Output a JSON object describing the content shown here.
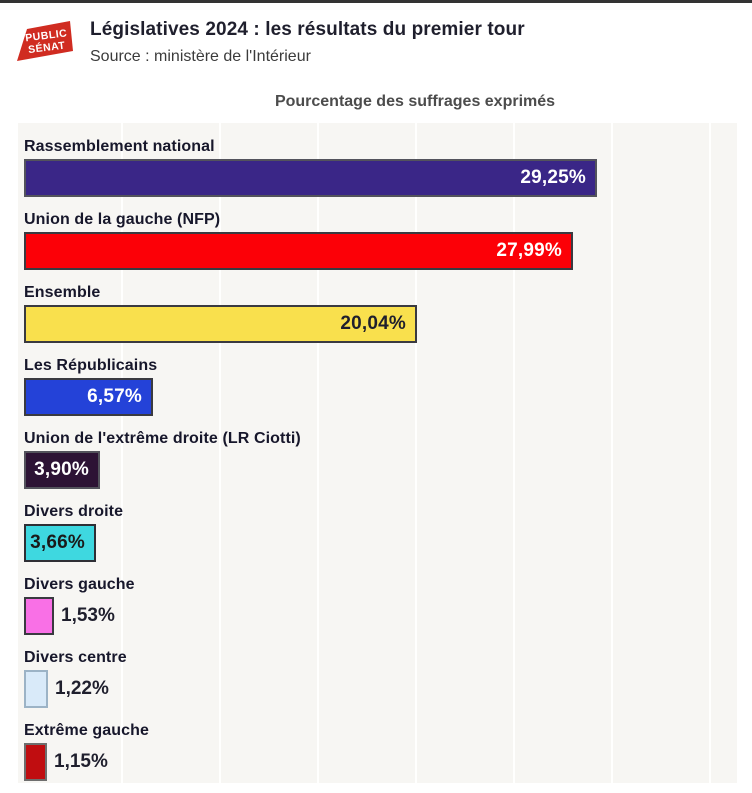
{
  "header": {
    "logo": {
      "line1": "PUBLIC",
      "line2": "SÉNAT",
      "color": "#d02c21",
      "text_color": "#ffffff"
    },
    "title": "Législatives 2024 : les résultats du premier tour",
    "source": "Source : ministère de l'Intérieur"
  },
  "chart_data": {
    "type": "bar",
    "orientation": "horizontal",
    "title": "Pourcentage des suffrages exprimés",
    "xlabel": "",
    "ylabel": "",
    "xlim": [
      0,
      36.5
    ],
    "grid_interval_percent": 5,
    "grid": "vertical-lines",
    "background_color": "#f7f6f3",
    "categories": [
      "Rassemblement national",
      "Union de la gauche (NFP)",
      "Ensemble",
      "Les Républicains",
      "Union de l'extrême droite (LR Ciotti)",
      "Divers droite",
      "Divers gauche",
      "Divers centre",
      "Extrême gauche"
    ],
    "values": [
      29.25,
      27.99,
      20.04,
      6.57,
      3.9,
      3.66,
      1.53,
      1.22,
      1.15
    ],
    "bars": [
      {
        "label": "Rassemblement national",
        "value": 29.25,
        "value_label": "29,25%",
        "color": "#3a2687",
        "border_color": "#53535c",
        "text_color": "#ffffff",
        "value_inside": true
      },
      {
        "label": "Union de la gauche (NFP)",
        "value": 27.99,
        "value_label": "27,99%",
        "color": "#fc0007",
        "border_color": "#3a3a40",
        "text_color": "#ffffff",
        "value_inside": true
      },
      {
        "label": "Ensemble",
        "value": 20.04,
        "value_label": "20,04%",
        "color": "#f9e04d",
        "border_color": "#3a3a40",
        "text_color": "#1f1f2d",
        "value_inside": true
      },
      {
        "label": "Les Républicains",
        "value": 6.57,
        "value_label": "6,57%",
        "color": "#2442d8",
        "border_color": "#3a3a40",
        "text_color": "#ffffff",
        "value_inside": true
      },
      {
        "label": "Union de l'extrême droite (LR Ciotti)",
        "value": 3.9,
        "value_label": "3,90%",
        "color": "#2d1335",
        "border_color": "#53535c",
        "text_color": "#ffffff",
        "value_inside": true
      },
      {
        "label": "Divers droite",
        "value": 3.66,
        "value_label": "3,66%",
        "color": "#3ed8e0",
        "border_color": "#2f2f35",
        "text_color": "#1a1a1a",
        "value_inside": true
      },
      {
        "label": "Divers gauche",
        "value": 1.53,
        "value_label": "1,53%",
        "color": "#f970e6",
        "border_color": "#3a3a40",
        "text_color": "#1f1f2d",
        "value_inside": false
      },
      {
        "label": "Divers centre",
        "value": 1.22,
        "value_label": "1,22%",
        "color": "#d9eaf9",
        "border_color": "#9cb3c6",
        "text_color": "#1f1f2d",
        "value_inside": false
      },
      {
        "label": "Extrême gauche",
        "value": 1.15,
        "value_label": "1,15%",
        "color": "#c00d10",
        "border_color": "#6e6e6e",
        "text_color": "#1f1f2d",
        "value_inside": false
      }
    ]
  }
}
